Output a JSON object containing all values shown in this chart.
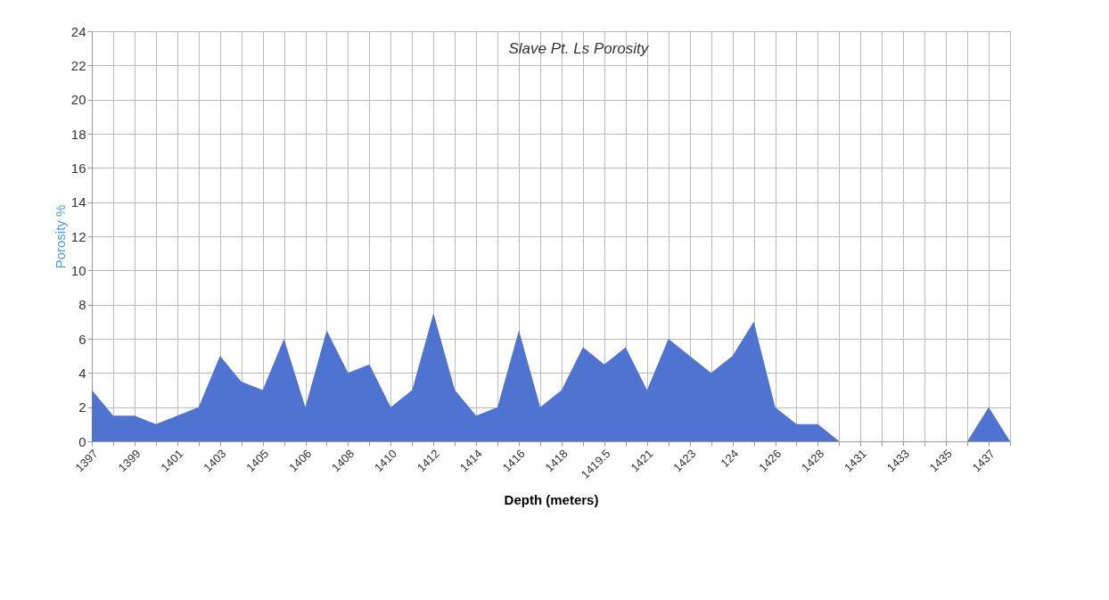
{
  "chart_data": {
    "type": "area",
    "title": "Slave Pt. Ls Porosity",
    "xlabel": "Depth (meters)",
    "ylabel": "Porosity %",
    "categories": [
      "1397",
      null,
      "1399",
      null,
      "1401",
      null,
      "1403",
      null,
      "1405",
      null,
      "1406",
      null,
      "1408",
      null,
      "1410",
      null,
      "1412",
      null,
      "1414",
      null,
      "1416",
      null,
      "1418",
      null,
      "1419.5",
      null,
      "1421",
      null,
      "1423",
      null,
      "124",
      null,
      "1426",
      null,
      "1428",
      null,
      "1431",
      null,
      "1433",
      null,
      "1435",
      null,
      "1437",
      null
    ],
    "series": [
      {
        "color": "#4f73d1",
        "values": [
          3,
          1.5,
          1.5,
          1,
          1.5,
          2,
          5,
          3.5,
          3,
          6,
          2,
          6.5,
          4,
          4.5,
          2,
          3,
          7.5,
          3,
          1.5,
          2,
          6.5,
          2,
          3,
          5.5,
          4.5,
          5.5,
          3,
          6,
          5,
          4,
          5,
          7,
          2,
          1,
          1,
          0,
          0,
          0,
          0,
          0,
          0,
          0,
          2,
          0
        ]
      }
    ],
    "ylim": [
      0,
      24
    ],
    "yticks": [
      0,
      2,
      4,
      6,
      8,
      10,
      12,
      14,
      16,
      18,
      20,
      22,
      24
    ],
    "grid": true
  }
}
